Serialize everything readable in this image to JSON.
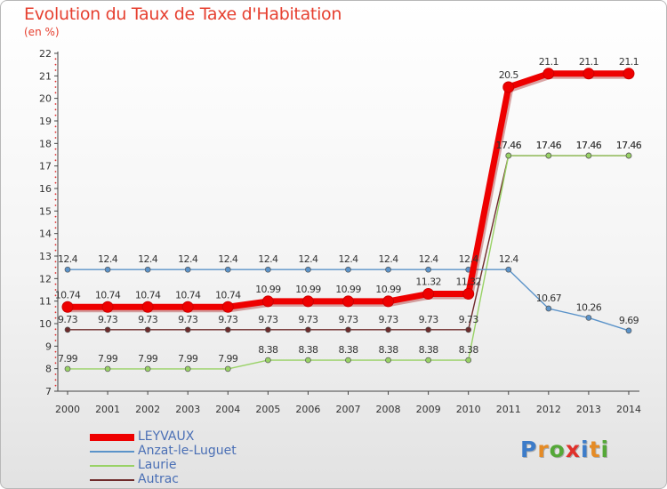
{
  "chart_data": {
    "type": "line",
    "title": "Evolution du Taux de Taxe d'Habitation",
    "subtitle": "(en %)",
    "x": [
      "2000",
      "2001",
      "2002",
      "2003",
      "2004",
      "2005",
      "2006",
      "2007",
      "2008",
      "2009",
      "2010",
      "2011",
      "2012",
      "2013",
      "2014"
    ],
    "ylim": [
      7,
      22
    ],
    "yticks": [
      "7",
      "8",
      "9",
      "10",
      "11",
      "12",
      "13",
      "14",
      "15",
      "16",
      "17",
      "18",
      "19",
      "20",
      "21",
      "22"
    ],
    "grid": false,
    "legend_position": "bottom-left",
    "series": [
      {
        "name": "LEYVAUX",
        "color": "#ee0000",
        "values": [
          10.74,
          10.74,
          10.74,
          10.74,
          10.74,
          10.99,
          10.99,
          10.99,
          10.99,
          11.32,
          11.32,
          20.5,
          21.1,
          21.1,
          21.1
        ],
        "labels": [
          "10.74",
          "10.74",
          "10.74",
          "10.74",
          "10.74",
          "10.99",
          "10.99",
          "10.99",
          "10.99",
          "11.32",
          "11.32",
          "20.5",
          "21.1",
          "21.1",
          "21.1"
        ]
      },
      {
        "name": "Anzat-le-Luguet",
        "color": "#5b93c9",
        "values": [
          12.4,
          12.4,
          12.4,
          12.4,
          12.4,
          12.4,
          12.4,
          12.4,
          12.4,
          12.4,
          12.4,
          12.4,
          10.67,
          10.26,
          9.69
        ],
        "labels": [
          "12.4",
          "12.4",
          "12.4",
          "12.4",
          "12.4",
          "12.4",
          "12.4",
          "12.4",
          "12.4",
          "12.4",
          "12.4",
          "12.4",
          "10.67",
          "10.26",
          "9.69"
        ]
      },
      {
        "name": "Laurie",
        "color": "#99d266",
        "values": [
          7.99,
          7.99,
          7.99,
          7.99,
          7.99,
          8.38,
          8.38,
          8.38,
          8.38,
          8.38,
          8.38,
          17.46,
          17.46,
          17.46,
          17.46
        ],
        "labels": [
          "7.99",
          "7.99",
          "7.99",
          "7.99",
          "7.99",
          "8.38",
          "8.38",
          "8.38",
          "8.38",
          "8.38",
          "8.38",
          "17.46",
          "17.46",
          "17.46",
          "17.46"
        ]
      },
      {
        "name": "Autrac",
        "color": "#6e2b2b",
        "values": [
          9.73,
          9.73,
          9.73,
          9.73,
          9.73,
          9.73,
          9.73,
          9.73,
          9.73,
          9.73,
          9.73,
          17.46,
          17.46,
          17.46,
          17.46
        ],
        "labels": [
          "9.73",
          "9.73",
          "9.73",
          "9.73",
          "9.73",
          "9.73",
          "9.73",
          "9.73",
          "9.73",
          "9.73",
          "9.73",
          "17.46",
          "17.46",
          "17.46",
          "17.46"
        ]
      }
    ]
  },
  "logo": {
    "letters": [
      {
        "ch": "P",
        "color": "#3d7cc9"
      },
      {
        "ch": "r",
        "color": "#e58b25"
      },
      {
        "ch": "o",
        "color": "#55a838"
      },
      {
        "ch": "x",
        "color": "#e0312b"
      },
      {
        "ch": "i",
        "color": "#3d7cc9"
      },
      {
        "ch": "t",
        "color": "#e58b25"
      },
      {
        "ch": "i",
        "color": "#55a838"
      }
    ]
  }
}
